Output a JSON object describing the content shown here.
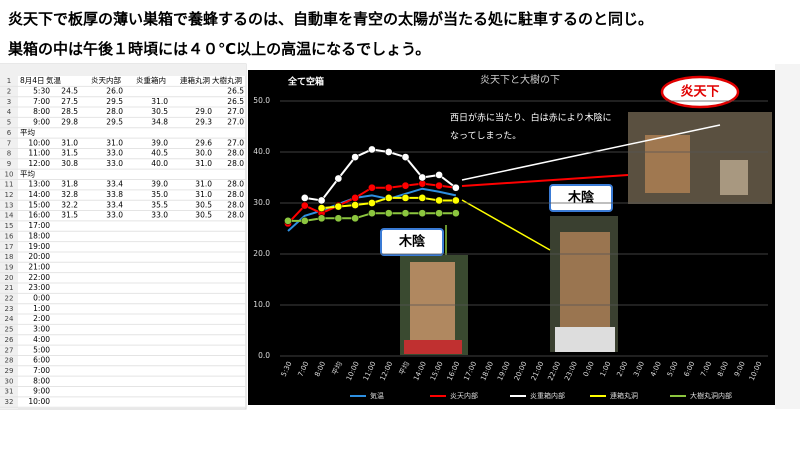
{
  "header": {
    "line1": "炎天下で板厚の薄い巣箱で養蜂するのは、自動車を青空の太陽が当たる処に駐車するのと同じ。",
    "line2": "巣箱の中は午後１時頃には４０℃以上の高温になるでしょう。"
  },
  "sheet": {
    "rows": [
      [
        "8月4日",
        "気温",
        "炎天内部",
        "炎重箱内",
        "連箱丸洞",
        "大樹丸洞"
      ],
      [
        "5:30",
        "24.5",
        "26.0",
        null,
        null,
        "26.5"
      ],
      [
        "7:00",
        "27.5",
        "29.5",
        "31.0",
        null,
        "26.5"
      ],
      [
        "8:00",
        "28.5",
        "28.0",
        "30.5",
        "29.0",
        "27.0"
      ],
      [
        "9:00",
        "29.8",
        "29.5",
        "34.8",
        "29.3",
        "27.0"
      ],
      [
        "平均"
      ],
      [
        "10:00",
        "31.0",
        "31.0",
        "39.0",
        "29.6",
        "27.0"
      ],
      [
        "11:00",
        "31.5",
        "33.0",
        "40.5",
        "30.0",
        "28.0"
      ],
      [
        "12:00",
        "30.8",
        "33.0",
        "40.0",
        "31.0",
        "28.0"
      ],
      [
        "平均"
      ],
      [
        "13:00",
        "31.8",
        "33.4",
        "39.0",
        "31.0",
        "28.0"
      ],
      [
        "14:00",
        "32.8",
        "33.8",
        "35.0",
        "31.0",
        "28.0"
      ],
      [
        "15:00",
        "32.2",
        "33.4",
        "35.5",
        "30.5",
        "28.0"
      ],
      [
        "16:00",
        "31.5",
        "33.0",
        "33.0",
        "30.5",
        "28.0"
      ],
      [
        "17:00"
      ],
      [
        "18:00"
      ],
      [
        "19:00"
      ],
      [
        "20:00"
      ],
      [
        "21:00"
      ],
      [
        "22:00"
      ],
      [
        "23:00"
      ],
      [
        "0:00"
      ],
      [
        "1:00"
      ],
      [
        "2:00"
      ],
      [
        "3:00"
      ],
      [
        "4:00"
      ],
      [
        "5:00"
      ],
      [
        "6:00"
      ],
      [
        "7:00"
      ],
      [
        "8:00"
      ],
      [
        "9:00"
      ],
      [
        "10:00"
      ]
    ]
  },
  "chart_data": {
    "type": "line",
    "title": "炎天下と大樹の下",
    "label": "全て空箱",
    "annotation": [
      "西日が赤に当たり、白は赤により木陰に",
      "なってしまった。"
    ],
    "callouts": [
      "炎天下",
      "木陰",
      "木陰"
    ],
    "categories": [
      "5:30",
      "7:00",
      "8:00",
      "平均",
      "10:00",
      "11:00",
      "12:00",
      "平均",
      "14:00",
      "15:00",
      "16:00",
      "17:00",
      "18:00",
      "19:00",
      "20:00",
      "21:00",
      "22:00",
      "23:00",
      "0:00",
      "1:00",
      "2:00",
      "3:00",
      "4:00",
      "5:00",
      "6:00",
      "7:00",
      "8:00",
      "9:00",
      "10:00"
    ],
    "ylim": [
      0,
      50
    ],
    "yticks": [
      {
        "value": 0,
        "label": "0.0"
      },
      {
        "value": 10,
        "label": "10.0"
      },
      {
        "value": 20,
        "label": "20.0"
      },
      {
        "value": 30,
        "label": "30.0"
      },
      {
        "value": 40,
        "label": "40.0"
      },
      {
        "value": 50,
        "label": "50.0"
      }
    ],
    "grid": true,
    "series": [
      {
        "name": "気温",
        "color": "#2e8fe0",
        "marker": false,
        "values": [
          24.5,
          27.5,
          28.5,
          29.8,
          31.0,
          31.5,
          30.8,
          31.8,
          32.8,
          32.2,
          31.5,
          null,
          null,
          null,
          null,
          null,
          null,
          null,
          null,
          null,
          null,
          null,
          null,
          null,
          null,
          null,
          null,
          null,
          null
        ]
      },
      {
        "name": "炎天内部",
        "color": "#ff0000",
        "marker": true,
        "values": [
          26.0,
          29.5,
          28.0,
          29.5,
          31.0,
          33.0,
          33.0,
          33.4,
          33.8,
          33.4,
          33.0,
          null,
          null,
          null,
          null,
          null,
          null,
          null,
          null,
          null,
          null,
          null,
          null,
          null,
          null,
          null,
          null,
          null,
          null
        ]
      },
      {
        "name": "炎重箱内部",
        "color": "#ffffff",
        "marker": true,
        "values": [
          null,
          31.0,
          30.5,
          34.8,
          39.0,
          40.5,
          40.0,
          39.0,
          35.0,
          35.5,
          33.0,
          null,
          null,
          null,
          null,
          null,
          null,
          null,
          null,
          null,
          null,
          null,
          null,
          null,
          null,
          null,
          null,
          null,
          null
        ]
      },
      {
        "name": "連箱丸洞",
        "color": "#ffff00",
        "marker": true,
        "values": [
          null,
          null,
          29.0,
          29.3,
          29.6,
          30.0,
          31.0,
          31.0,
          31.0,
          30.5,
          30.5,
          null,
          null,
          null,
          null,
          null,
          null,
          null,
          null,
          null,
          null,
          null,
          null,
          null,
          null,
          null,
          null,
          null,
          null
        ]
      },
      {
        "name": "大樹丸洞内部",
        "color": "#8cc63f",
        "marker": true,
        "values": [
          26.5,
          26.5,
          27.0,
          27.0,
          27.0,
          28.0,
          28.0,
          28.0,
          28.0,
          28.0,
          28.0,
          null,
          null,
          null,
          null,
          null,
          null,
          null,
          null,
          null,
          null,
          null,
          null,
          null,
          null,
          null,
          null,
          null,
          null
        ]
      }
    ]
  }
}
